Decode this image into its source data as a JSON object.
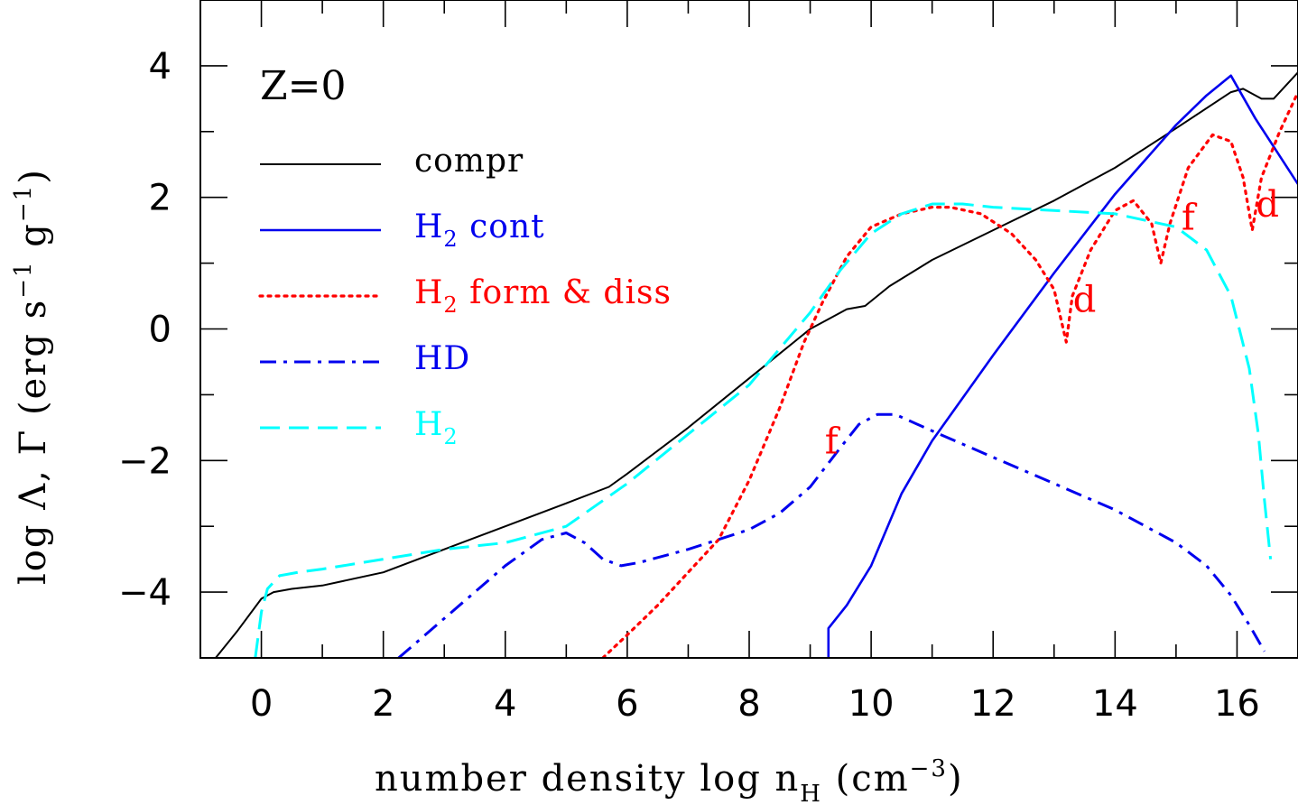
{
  "chart_data": {
    "type": "line",
    "title": "",
    "panel_label": "Z=0",
    "xlabel_main": "number density log n",
    "xlabel_sub": "H",
    "xlabel_unit_open": " (cm",
    "xlabel_unit_exp": "−3",
    "xlabel_unit_close": ")",
    "ylabel_main": "log Λ, Γ (erg s",
    "ylabel_exp1": "−1",
    "ylabel_mid": " g",
    "ylabel_exp2": "−1",
    "ylabel_close": ")",
    "xlim": [
      -1,
      17
    ],
    "ylim": [
      -5,
      5
    ],
    "x_ticks": [
      0,
      2,
      4,
      6,
      8,
      10,
      12,
      14,
      16
    ],
    "x_tick_labels": [
      "0",
      "2",
      "4",
      "6",
      "8",
      "10",
      "12",
      "14",
      "16"
    ],
    "y_ticks": [
      -4,
      -2,
      0,
      2,
      4
    ],
    "y_tick_labels": [
      "−4",
      "−2",
      "0",
      "2",
      "4"
    ],
    "legend_position": "top-left",
    "series": [
      {
        "name": "compr",
        "name_sub": "",
        "name_rest": "",
        "color": "#000000",
        "style": "solid",
        "x": [
          -0.75,
          -0.4,
          0,
          0.2,
          0.5,
          1,
          2,
          3,
          4,
          5,
          5.7,
          6,
          7,
          8,
          9,
          9.3,
          9.6,
          9.9,
          10.3,
          11,
          12,
          13,
          14,
          15,
          15.9,
          16.1,
          16.4,
          16.6,
          17
        ],
        "y": [
          -5,
          -4.6,
          -4.1,
          -4.0,
          -3.95,
          -3.9,
          -3.7,
          -3.35,
          -3.0,
          -2.65,
          -2.4,
          -2.2,
          -1.5,
          -0.75,
          0,
          0.15,
          0.3,
          0.35,
          0.65,
          1.05,
          1.5,
          1.95,
          2.45,
          3.05,
          3.6,
          3.65,
          3.5,
          3.5,
          3.9
        ]
      },
      {
        "name": "H",
        "name_sub": "2",
        "name_rest": " cont",
        "color": "#0000ee",
        "style": "solid",
        "x": [
          9.3,
          9.3,
          9.6,
          10,
          10.5,
          11,
          12,
          13,
          14,
          15,
          15.5,
          15.9,
          16.3,
          17
        ],
        "y": [
          -5,
          -4.55,
          -4.2,
          -3.6,
          -2.5,
          -1.7,
          -0.4,
          0.85,
          2.05,
          3.1,
          3.55,
          3.85,
          3.2,
          2.2
        ]
      },
      {
        "name": "H",
        "name_sub": "2",
        "name_rest": " form & diss",
        "color": "#ff0000",
        "style": "dotted",
        "x": [
          5.6,
          6,
          6.5,
          7,
          7.5,
          8,
          8.5,
          8.9,
          9.2,
          9.6,
          10,
          10.5,
          11,
          11.3,
          11.8,
          12.3,
          12.7,
          13,
          13.1,
          13.2,
          13.3,
          13.6,
          14,
          14.3,
          14.6,
          14.75,
          14.9,
          15.2,
          15.6,
          15.9,
          16.1,
          16.25,
          16.4,
          16.7,
          17
        ],
        "y": [
          -5,
          -4.65,
          -4.2,
          -3.7,
          -3.2,
          -2.3,
          -1.2,
          -0.2,
          0.4,
          1.1,
          1.55,
          1.75,
          1.85,
          1.85,
          1.75,
          1.45,
          1.05,
          0.6,
          0.2,
          -0.2,
          0.5,
          1.2,
          1.8,
          1.95,
          1.6,
          1.0,
          1.6,
          2.45,
          2.95,
          2.85,
          2.3,
          1.5,
          2.3,
          3.0,
          3.6
        ]
      },
      {
        "name": "HD",
        "name_sub": "",
        "name_rest": "",
        "color": "#0000ee",
        "style": "dashdot",
        "x": [
          2.25,
          3,
          4,
          4.6,
          5,
          5.3,
          5.6,
          5.9,
          6.2,
          7,
          8,
          8.5,
          9,
          9.5,
          9.8,
          10.1,
          10.4,
          11,
          12,
          13,
          14,
          15,
          15.5,
          15.9,
          16.2,
          16.45
        ],
        "y": [
          -5,
          -4.4,
          -3.6,
          -3.2,
          -3.1,
          -3.25,
          -3.5,
          -3.6,
          -3.55,
          -3.35,
          -3.05,
          -2.8,
          -2.4,
          -1.8,
          -1.45,
          -1.3,
          -1.3,
          -1.55,
          -1.95,
          -2.35,
          -2.75,
          -3.25,
          -3.6,
          -4.05,
          -4.5,
          -4.9
        ]
      },
      {
        "name": "H",
        "name_sub": "2",
        "name_rest": "",
        "color": "#00ffff",
        "style": "dashed",
        "x": [
          -0.1,
          0,
          0.1,
          0.3,
          0.6,
          1,
          2,
          3,
          4,
          5,
          6,
          7,
          8,
          9,
          9.5,
          10,
          10.5,
          11,
          11.5,
          12,
          13,
          14,
          15,
          15.5,
          15.9,
          16.2,
          16.35,
          16.45,
          16.55
        ],
        "y": [
          -5,
          -4.3,
          -3.95,
          -3.75,
          -3.7,
          -3.65,
          -3.5,
          -3.35,
          -3.25,
          -3.0,
          -2.35,
          -1.6,
          -0.85,
          0.25,
          0.9,
          1.45,
          1.75,
          1.9,
          1.9,
          1.85,
          1.8,
          1.75,
          1.55,
          1.2,
          0.5,
          -0.6,
          -1.6,
          -2.6,
          -3.5
        ]
      }
    ],
    "annotations": [
      {
        "text": "f",
        "x": 9.35,
        "y": -1.7
      },
      {
        "text": "d",
        "x": 13.5,
        "y": 0.45
      },
      {
        "text": "f",
        "x": 15.2,
        "y": 1.7
      },
      {
        "text": "d",
        "x": 16.5,
        "y": 1.9
      }
    ]
  }
}
